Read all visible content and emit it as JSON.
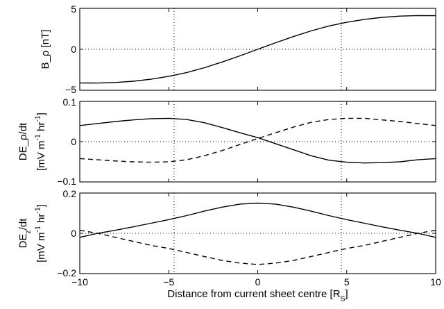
{
  "chart_data": [
    {
      "type": "line",
      "ylabel": "B_ρ [nT]",
      "ylim": [
        -5,
        5
      ],
      "yticks": [
        -5,
        0,
        5
      ],
      "xlim": [
        -10,
        10
      ],
      "grid": "dotted lines at y=0 and x=±4.7",
      "series": [
        {
          "style": "solid",
          "x": [
            -10,
            -9,
            -8,
            -7,
            -6,
            -5,
            -4,
            -3,
            -2,
            -1,
            0,
            1,
            2,
            3,
            4,
            5,
            6,
            7,
            8,
            9,
            10
          ],
          "values": [
            -4.1,
            -4.12,
            -4.05,
            -3.9,
            -3.65,
            -3.3,
            -2.85,
            -2.25,
            -1.55,
            -0.8,
            0,
            0.8,
            1.55,
            2.25,
            2.85,
            3.3,
            3.65,
            3.9,
            4.05,
            4.12,
            4.1
          ]
        }
      ]
    },
    {
      "type": "line",
      "ylabel": "DE_ρ/dt",
      "ylabel2": "[mV m^-1 hr^-1]",
      "ylim": [
        -0.1,
        0.1
      ],
      "yticks": [
        -0.1,
        0,
        0.1
      ],
      "xlim": [
        -10,
        10
      ],
      "grid": "dotted lines at y=0 and x=±4.7",
      "series": [
        {
          "style": "solid",
          "x": [
            -10,
            -9,
            -8,
            -7,
            -6,
            -5,
            -4,
            -3,
            -2,
            -1,
            0,
            1,
            2,
            3,
            4,
            5,
            6,
            7,
            8,
            9,
            10
          ],
          "values": [
            0.04,
            0.045,
            0.05,
            0.054,
            0.057,
            0.058,
            0.055,
            0.047,
            0.035,
            0.022,
            0.01,
            -0.005,
            -0.02,
            -0.035,
            -0.046,
            -0.051,
            -0.053,
            -0.052,
            -0.05,
            -0.045,
            -0.042
          ]
        },
        {
          "style": "dashed",
          "x": [
            -10,
            -9,
            -8,
            -7,
            -6,
            -5,
            -4,
            -3,
            -2,
            -1,
            0,
            1,
            2,
            3,
            4,
            5,
            6,
            7,
            8,
            9,
            10
          ],
          "values": [
            -0.042,
            -0.045,
            -0.048,
            -0.05,
            -0.051,
            -0.05,
            -0.045,
            -0.035,
            -0.022,
            -0.007,
            0.008,
            0.022,
            0.036,
            0.048,
            0.055,
            0.058,
            0.058,
            0.054,
            0.05,
            0.045,
            0.04
          ]
        }
      ]
    },
    {
      "type": "line",
      "ylabel": "DE_z/dt",
      "ylabel2": "[mV m^-1 hr^-1]",
      "ylim": [
        -0.2,
        0.2
      ],
      "yticks": [
        -0.2,
        0,
        0.2
      ],
      "xlim": [
        -10,
        10
      ],
      "xticks": [
        -10,
        -5,
        0,
        5,
        10
      ],
      "xlabel": "Distance from current sheet centre [R_S]",
      "grid": "dotted lines at y=0 and x=±4.7",
      "series": [
        {
          "style": "solid",
          "x": [
            -10,
            -9,
            -8,
            -7,
            -6,
            -5,
            -4,
            -3,
            -2,
            -1,
            0,
            1,
            2,
            3,
            4,
            5,
            6,
            7,
            8,
            9,
            10
          ],
          "values": [
            -0.02,
            0.0,
            0.015,
            0.032,
            0.05,
            0.068,
            0.088,
            0.11,
            0.13,
            0.145,
            0.15,
            0.145,
            0.13,
            0.11,
            0.088,
            0.068,
            0.05,
            0.032,
            0.015,
            0.0,
            -0.02
          ]
        },
        {
          "style": "dashed",
          "x": [
            -10,
            -9,
            -8,
            -7,
            -6,
            -5,
            -4,
            -3,
            -2,
            -1,
            0,
            1,
            2,
            3,
            4,
            5,
            6,
            7,
            8,
            9,
            10
          ],
          "values": [
            0.015,
            0.0,
            -0.02,
            -0.04,
            -0.06,
            -0.075,
            -0.095,
            -0.115,
            -0.135,
            -0.148,
            -0.155,
            -0.148,
            -0.135,
            -0.115,
            -0.095,
            -0.075,
            -0.06,
            -0.04,
            -0.02,
            0.0,
            0.015
          ]
        }
      ]
    }
  ]
}
